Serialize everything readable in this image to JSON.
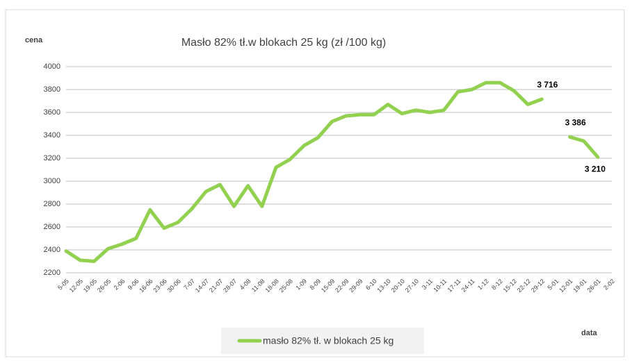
{
  "chart_data": {
    "type": "line",
    "title": "Masło 82% tł.w blokach 25 kg (zł /100 kg)",
    "y_label": "cena",
    "x_label": "data",
    "categories": [
      "5-05",
      "12-05",
      "19-05",
      "26-05",
      "2-06",
      "9-06",
      "16-06",
      "23-06",
      "30-06",
      "7-07",
      "14-07",
      "21-07",
      "28-07",
      "4-08",
      "11-08",
      "18-08",
      "25-08",
      "1-09",
      "8-09",
      "15-09",
      "22-09",
      "29-09",
      "6-10",
      "13-10",
      "20-10",
      "27-10",
      "3-11",
      "10-11",
      "17-11",
      "24-11",
      "1-12",
      "8-12",
      "15-12",
      "22-12",
      "29-12",
      "5-01",
      "12-01",
      "19-01",
      "26-01",
      "2-02"
    ],
    "series": [
      {
        "name": "masło 82% tł. w blokach 25 kg",
        "color": "#92d050",
        "values": [
          2390,
          2310,
          2300,
          2410,
          2450,
          2500,
          2750,
          2590,
          2640,
          2760,
          2910,
          2970,
          2780,
          2960,
          2780,
          3120,
          3190,
          3310,
          3380,
          3520,
          3570,
          3580,
          3580,
          3670,
          3590,
          3620,
          3600,
          3620,
          3780,
          3800,
          3860,
          3860,
          3790,
          3670,
          3716,
          null,
          3386,
          3350,
          3210,
          null
        ],
        "value_labels": [
          null,
          null,
          null,
          null,
          null,
          null,
          null,
          null,
          null,
          null,
          null,
          null,
          null,
          null,
          null,
          null,
          null,
          null,
          null,
          null,
          null,
          null,
          null,
          null,
          null,
          null,
          null,
          null,
          null,
          null,
          null,
          null,
          null,
          null,
          "3 716",
          null,
          "3 386",
          null,
          "3 210",
          null
        ]
      }
    ],
    "ylim": [
      2200,
      4000
    ],
    "yticks": [
      2200,
      2400,
      2600,
      2800,
      3000,
      3200,
      3400,
      3600,
      3800,
      4000
    ],
    "grid": true
  }
}
